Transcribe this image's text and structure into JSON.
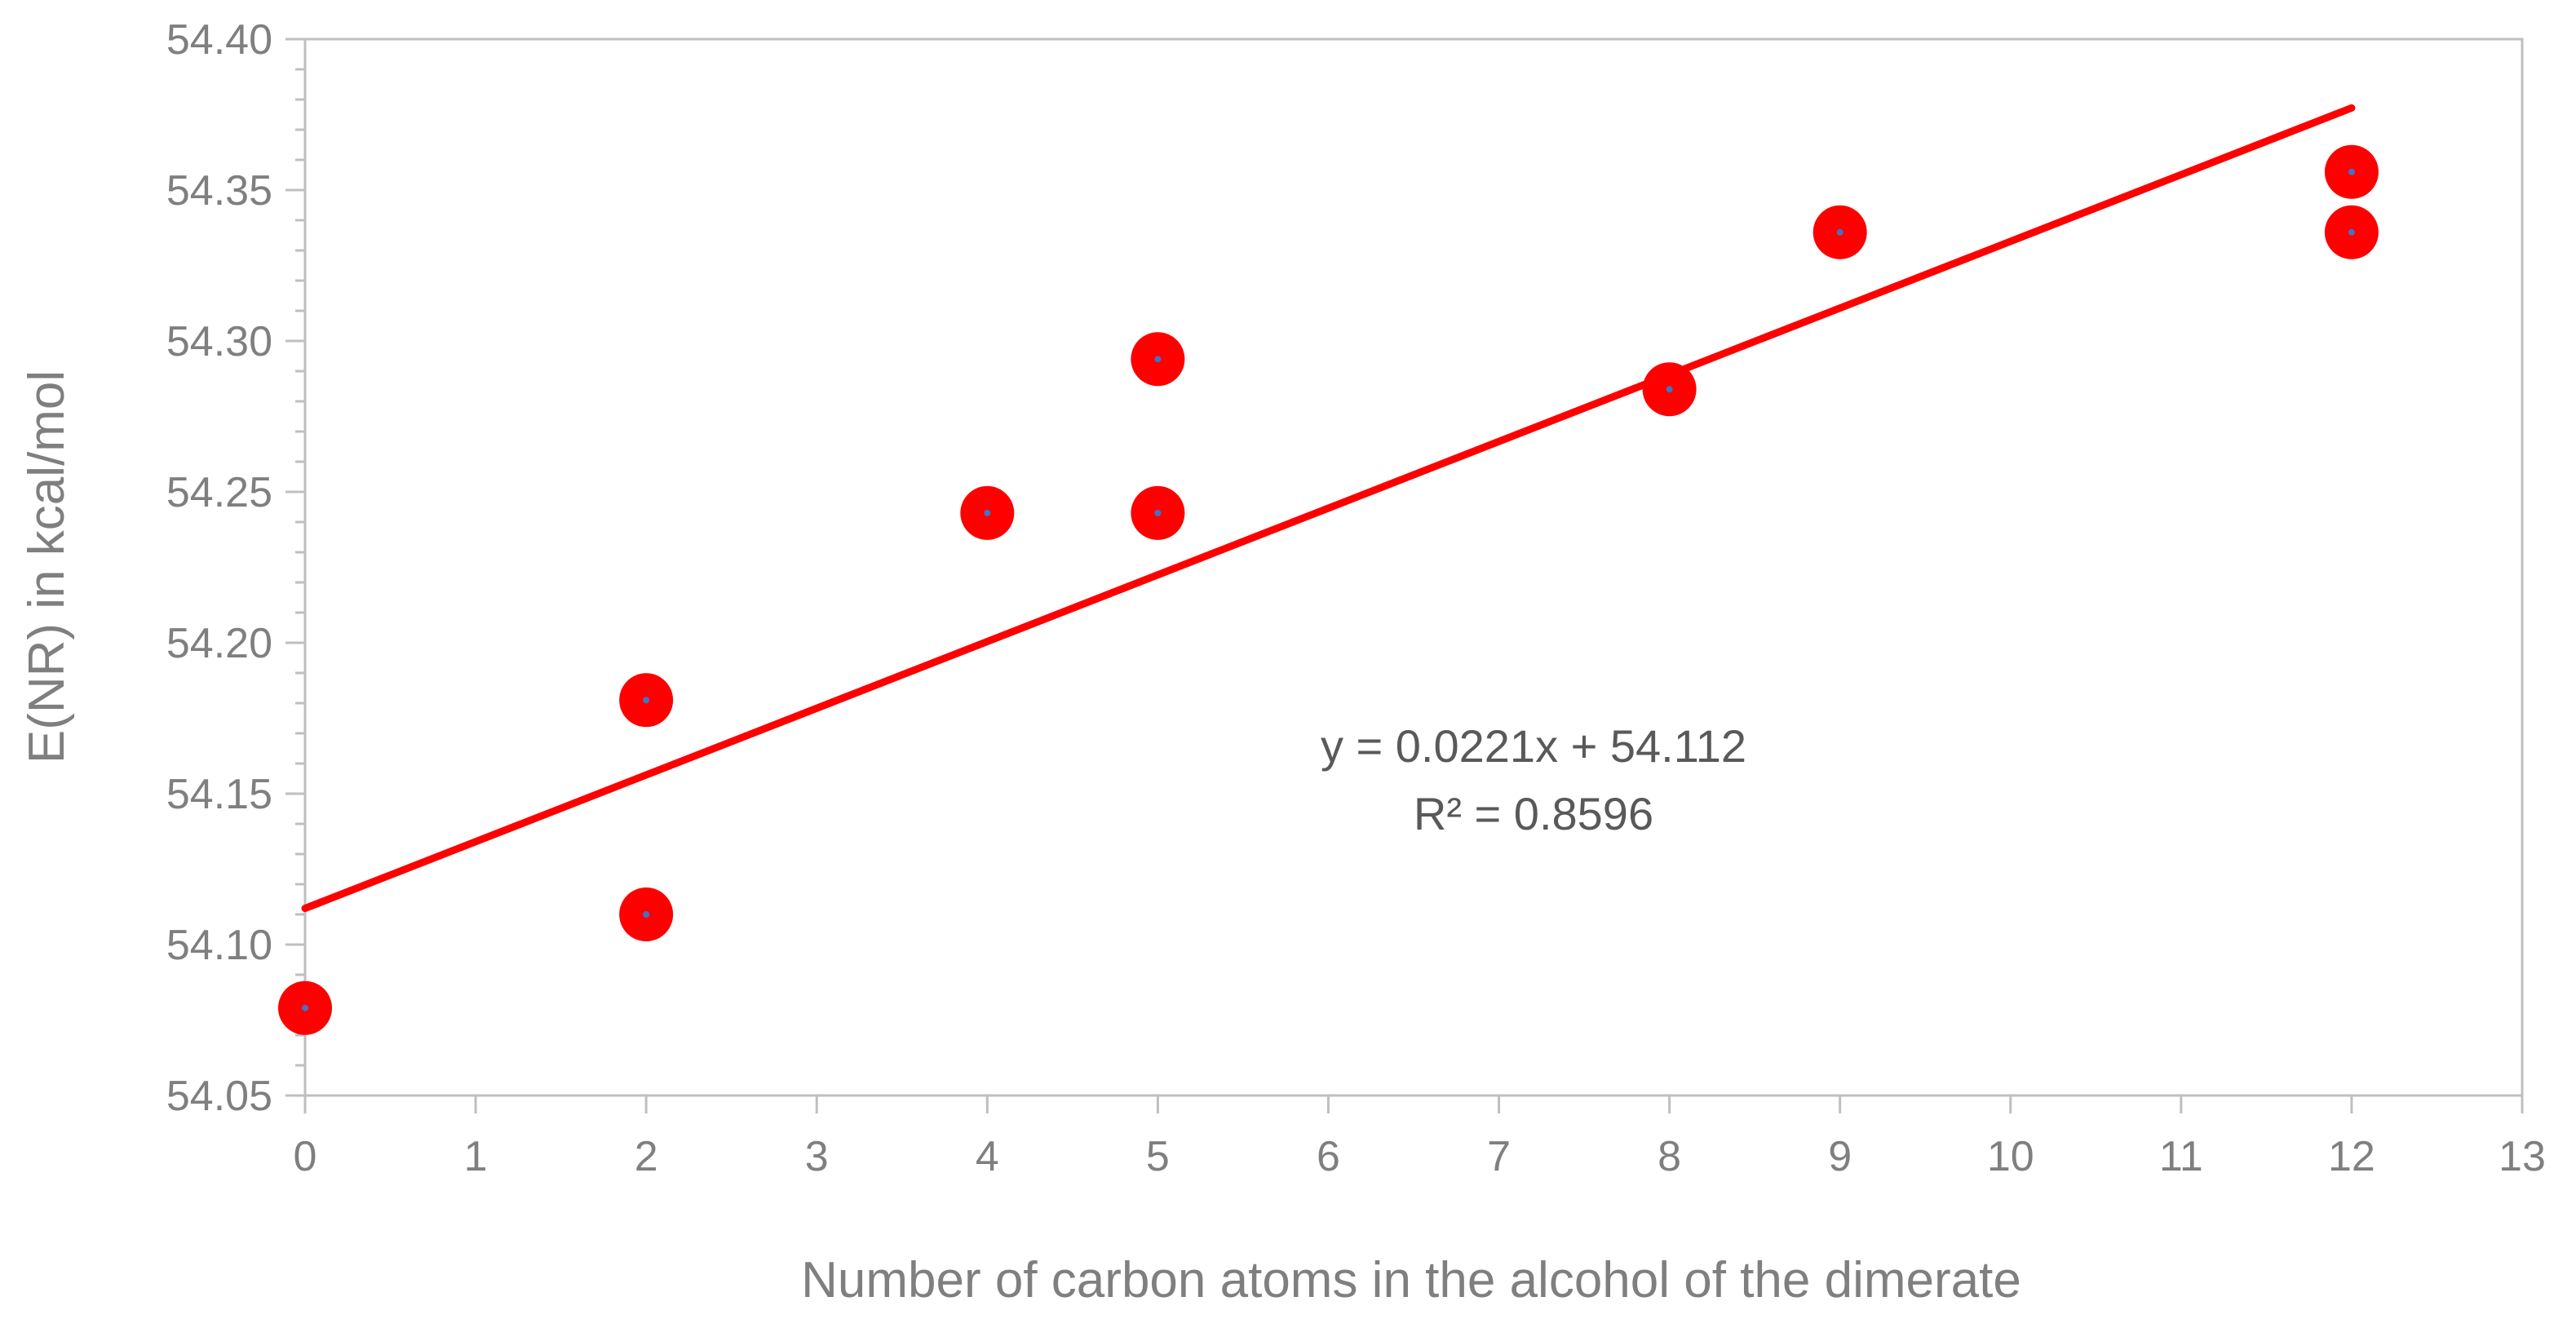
{
  "chart_data": {
    "type": "scatter",
    "title": "",
    "xlabel": "Number of carbon atoms in the alcohol of the dimerate",
    "ylabel": "E(NR) in kcal/mol",
    "xlim": [
      0,
      13
    ],
    "ylim": [
      54.05,
      54.4
    ],
    "x_ticks": [
      0,
      1,
      2,
      3,
      4,
      5,
      6,
      7,
      8,
      9,
      10,
      11,
      12,
      13
    ],
    "y_ticks": [
      54.05,
      54.1,
      54.15,
      54.2,
      54.25,
      54.3,
      54.35,
      54.4
    ],
    "x_tick_labels": [
      "0",
      "1",
      "2",
      "3",
      "4",
      "5",
      "6",
      "7",
      "8",
      "9",
      "10",
      "11",
      "12",
      "13"
    ],
    "y_tick_labels": [
      "54.05",
      "54.10",
      "54.15",
      "54.20",
      "54.25",
      "54.30",
      "54.35",
      "54.40"
    ],
    "grid": false,
    "legend": "none",
    "marker_color": "#ff0000",
    "marker_center_color": "#4472c4",
    "trend_color": "#ff0000",
    "axis_color": "#bfbfbf",
    "points": [
      {
        "x": 0,
        "y": 54.079
      },
      {
        "x": 2,
        "y": 54.11
      },
      {
        "x": 2,
        "y": 54.181
      },
      {
        "x": 4,
        "y": 54.243
      },
      {
        "x": 5,
        "y": 54.243
      },
      {
        "x": 5,
        "y": 54.294
      },
      {
        "x": 8,
        "y": 54.284
      },
      {
        "x": 9,
        "y": 54.336
      },
      {
        "x": 12,
        "y": 54.336
      },
      {
        "x": 12,
        "y": 54.356
      }
    ],
    "trendline": {
      "slope": 0.0221,
      "intercept": 54.112,
      "x_range": [
        0,
        12
      ],
      "equation_text": "y = 0.0221x + 54.112",
      "r2_text": "R² = 0.8596"
    }
  }
}
